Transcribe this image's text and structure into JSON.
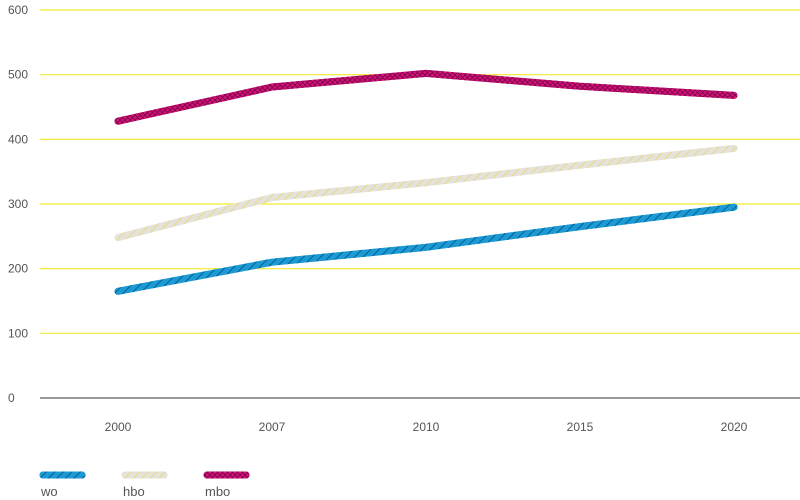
{
  "chart_data": {
    "type": "line",
    "categories": [
      "2000",
      "2007",
      "2010",
      "2015",
      "2020"
    ],
    "ylim": [
      0,
      600
    ],
    "yticks": [
      0,
      100,
      200,
      300,
      400,
      500,
      600
    ],
    "grid": true,
    "legend_position": "bottom-left",
    "series": [
      {
        "name": "wo",
        "values": [
          165,
          210,
          233,
          265,
          295
        ],
        "color": "#1a9bd7",
        "pattern": "diagonal-stripes"
      },
      {
        "name": "hbo",
        "values": [
          248,
          310,
          333,
          360,
          386
        ],
        "color": "#dedcd2",
        "pattern": "diagonal-stripes"
      },
      {
        "name": "mbo",
        "values": [
          428,
          481,
          502,
          482,
          468
        ],
        "color": "#d8117d",
        "pattern": "crosshatch"
      }
    ]
  },
  "colors": {
    "gridline": "#f2ea2e",
    "axis": "#333333",
    "text": "#555555"
  }
}
